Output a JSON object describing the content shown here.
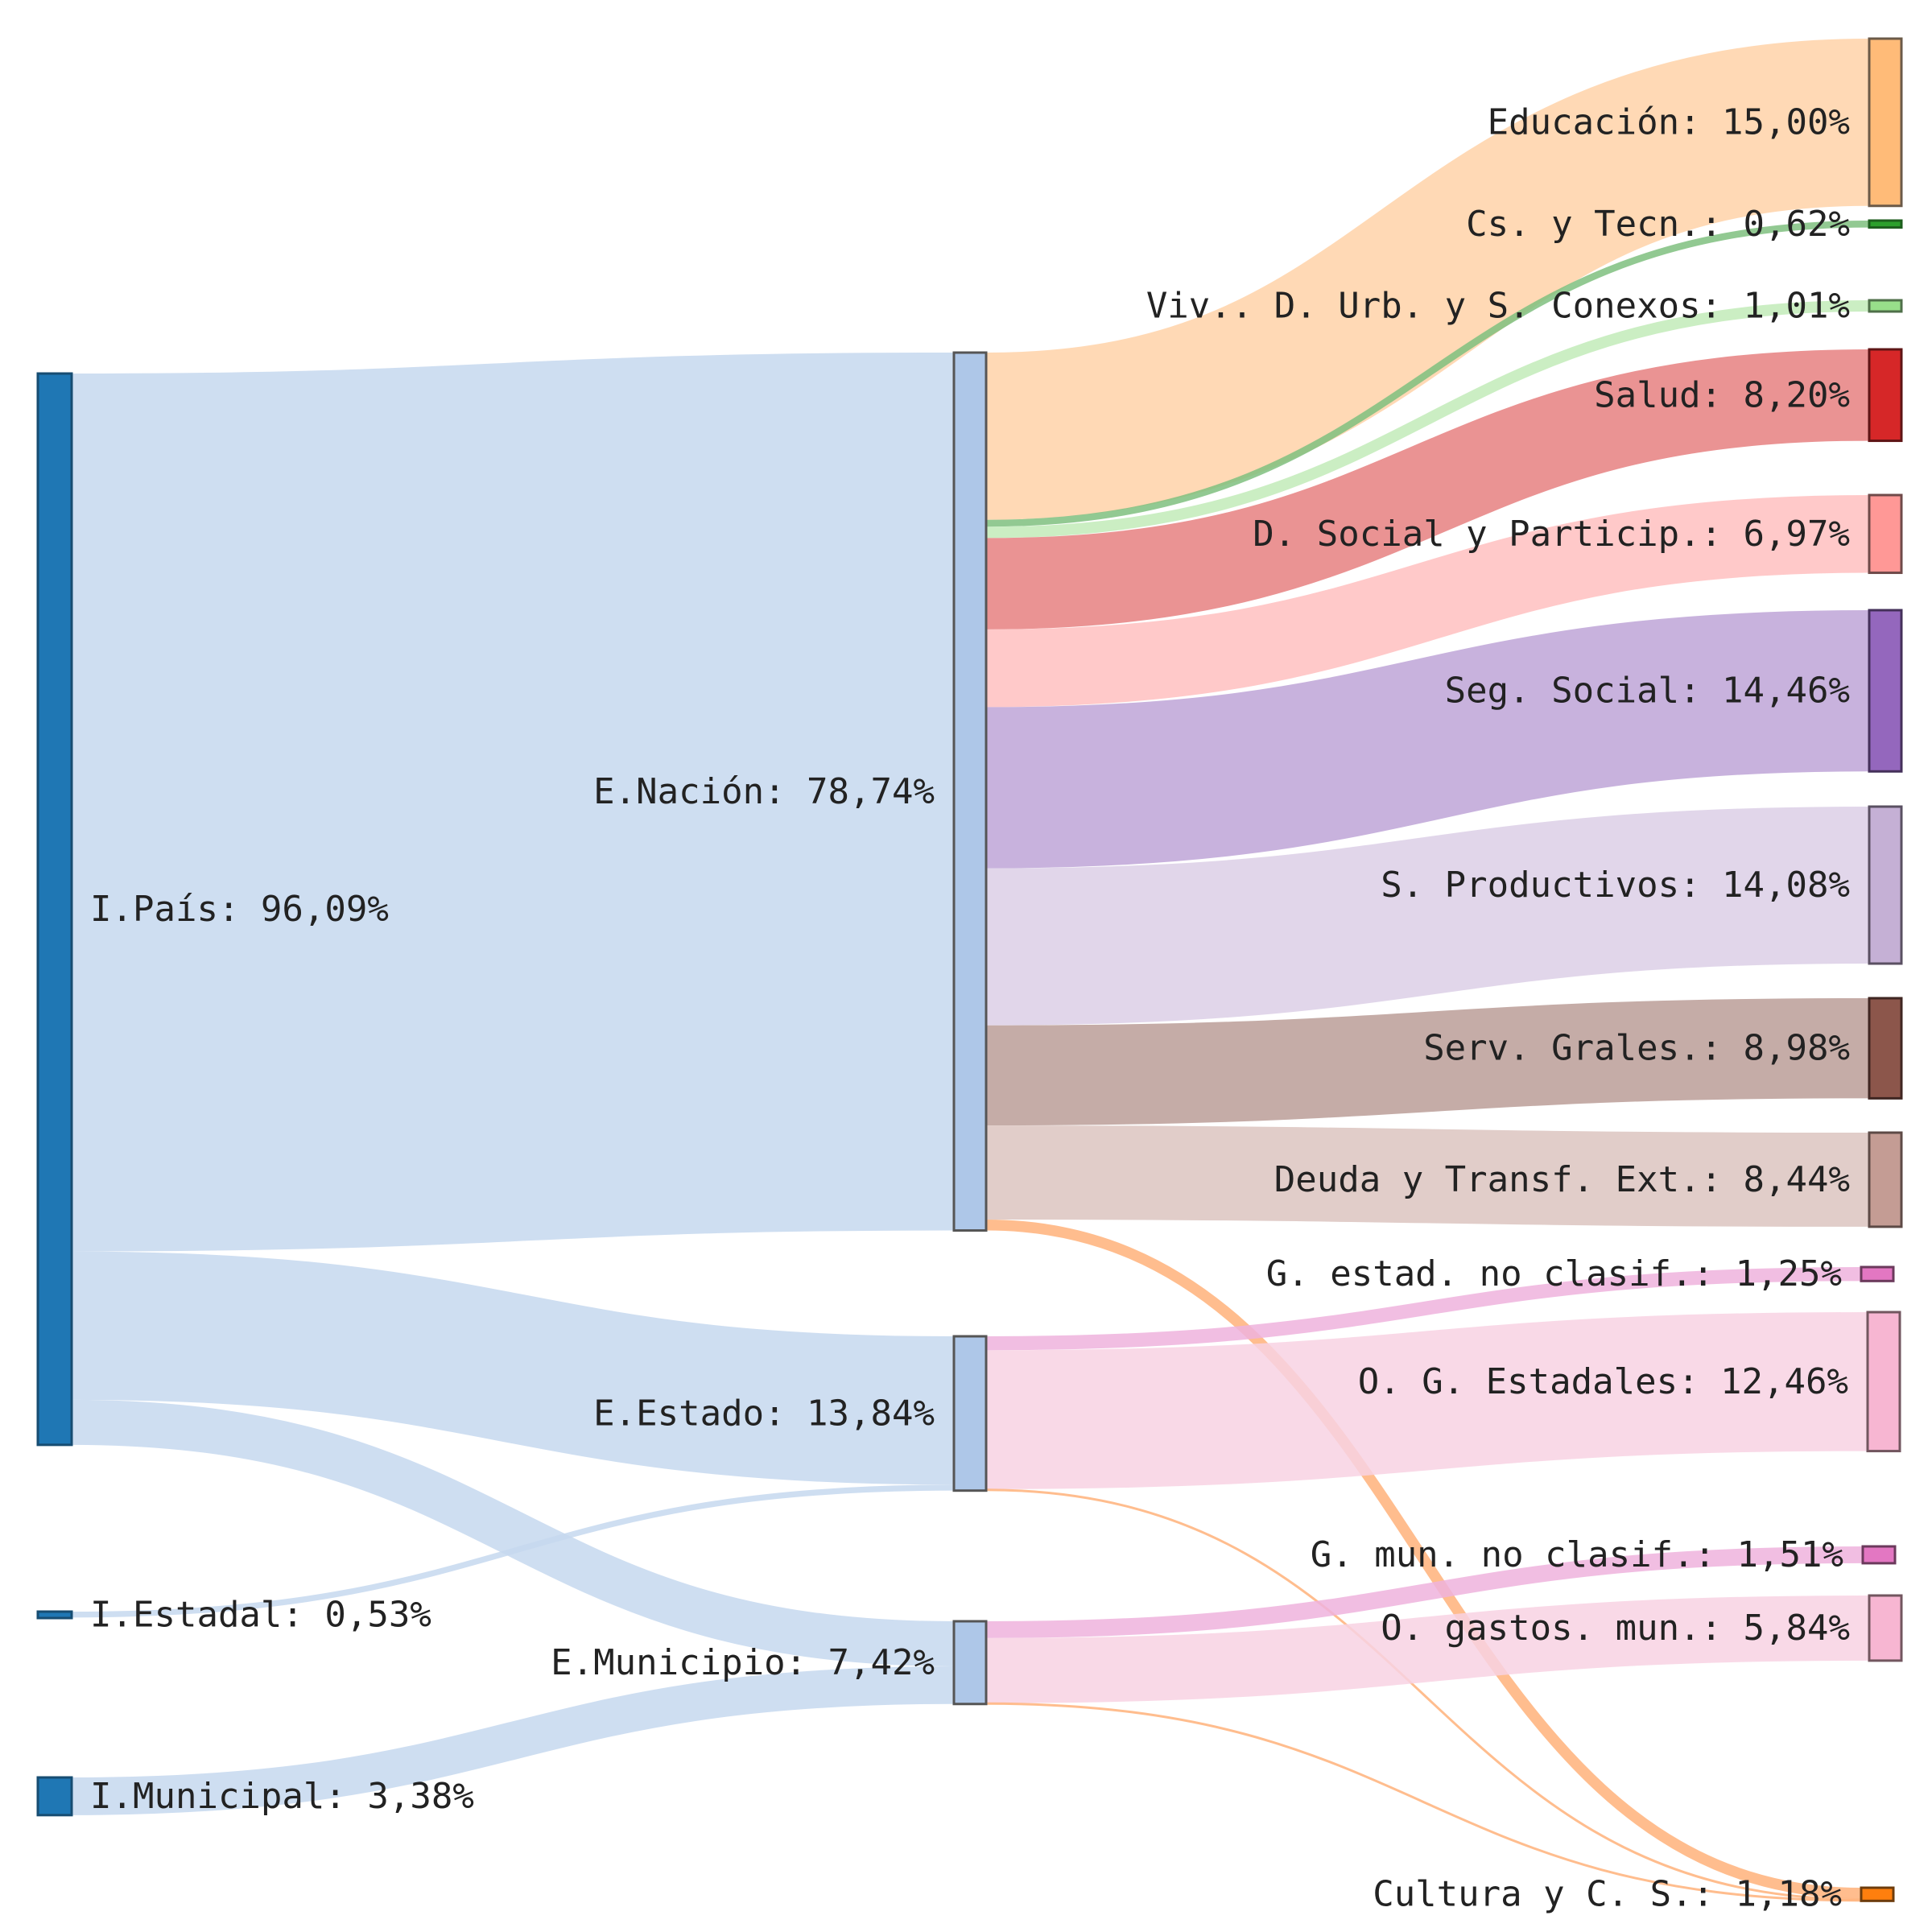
{
  "chart_data": {
    "type": "sankey",
    "title": "",
    "nodes": [
      {
        "id": "ipais",
        "label": "I.País: 96,09%",
        "value": 96.09,
        "color": "#1f77b4",
        "stroke": "#174d72"
      },
      {
        "id": "iestadal",
        "label": "I.Estadal: 0,53%",
        "value": 0.53,
        "color": "#1f77b4",
        "stroke": "#174d72"
      },
      {
        "id": "imunicipal",
        "label": "I.Municipal: 3,38%",
        "value": 3.38,
        "color": "#1f77b4",
        "stroke": "#174d72"
      },
      {
        "id": "enacion",
        "label": "E.Nación: 78,74%",
        "value": 78.74,
        "color": "#aec7e8",
        "stroke": "#555555"
      },
      {
        "id": "eestado",
        "label": "E.Estado: 13,84%",
        "value": 13.84,
        "color": "#aec7e8",
        "stroke": "#555555"
      },
      {
        "id": "emunicipio",
        "label": "E.Municipio: 7,42%",
        "value": 7.42,
        "color": "#aec7e8",
        "stroke": "#555555"
      },
      {
        "id": "educacion",
        "label": "Educación: 15,00%",
        "value": 15.0,
        "color": "#ffbb78",
        "stroke": "#6b5a48"
      },
      {
        "id": "cstec",
        "label": "Cs. y Tecn.: 0,62%",
        "value": 0.62,
        "color": "#2ca02c",
        "stroke": "#1d5e1d"
      },
      {
        "id": "vivienda",
        "label": "Viv.. D. Urb. y S. Conexos: 1,01%",
        "value": 1.01,
        "color": "#98df8a",
        "stroke": "#4f6f49"
      },
      {
        "id": "salud",
        "label": "Salud: 8,20%",
        "value": 8.2,
        "color": "#d62728",
        "stroke": "#5e1415"
      },
      {
        "id": "dsocial",
        "label": "D. Social y Particip.: 6,97%",
        "value": 6.97,
        "color": "#ff9896",
        "stroke": "#6f4a49"
      },
      {
        "id": "segsocial",
        "label": "Seg. Social: 14,46%",
        "value": 14.46,
        "color": "#9467bd",
        "stroke": "#44305a"
      },
      {
        "id": "sprod",
        "label": "S. Productivos: 14,08%",
        "value": 14.08,
        "color": "#c5b0d5",
        "stroke": "#5a5062"
      },
      {
        "id": "servgrales",
        "label": "Serv. Grales.: 8,98%",
        "value": 8.98,
        "color": "#8c564b",
        "stroke": "#3f2622"
      },
      {
        "id": "deuda",
        "label": "Deuda y Transf. Ext.: 8,44%",
        "value": 8.44,
        "color": "#c49c94",
        "stroke": "#5d4a46"
      },
      {
        "id": "gestad",
        "label": "G. estad. no clasif.: 1,25%",
        "value": 1.25,
        "color": "#e377c2",
        "stroke": "#6b3a5c"
      },
      {
        "id": "ogestad",
        "label": "O. G. Estadales: 12,46%",
        "value": 12.46,
        "color": "#f7b6d2",
        "stroke": "#72565f"
      },
      {
        "id": "gmun",
        "label": "G. mun. no clasif.: 1,51%",
        "value": 1.51,
        "color": "#e377c2",
        "stroke": "#6b3a5c"
      },
      {
        "id": "ogmun",
        "label": "O. gastos. mun.: 5,84%",
        "value": 5.84,
        "color": "#f7b6d2",
        "stroke": "#72565f"
      },
      {
        "id": "cultura",
        "label": "Cultura y C. S.: 1,18%",
        "value": 1.18,
        "color": "#ff7f0e",
        "stroke": "#6e3c0c"
      }
    ],
    "links": [
      {
        "source": "ipais",
        "target": "enacion",
        "value": 78.74,
        "color": "#c6d8ee"
      },
      {
        "source": "ipais",
        "target": "eestado",
        "value": 13.31,
        "color": "#c6d8ee"
      },
      {
        "source": "ipais",
        "target": "emunicipio",
        "value": 4.04,
        "color": "#c6d8ee"
      },
      {
        "source": "iestadal",
        "target": "eestado",
        "value": 0.53,
        "color": "#c6d8ee"
      },
      {
        "source": "imunicipal",
        "target": "emunicipio",
        "value": 3.38,
        "color": "#c6d8ee"
      },
      {
        "source": "enacion",
        "target": "educacion",
        "value": 15.0,
        "color": "#ffd2a8"
      },
      {
        "source": "enacion",
        "target": "cstec",
        "value": 0.62,
        "color": "#7fc07f"
      },
      {
        "source": "enacion",
        "target": "vivienda",
        "value": 1.01,
        "color": "#c2ebb9"
      },
      {
        "source": "enacion",
        "target": "salud",
        "value": 8.2,
        "color": "#e68080"
      },
      {
        "source": "enacion",
        "target": "dsocial",
        "value": 6.97,
        "color": "#ffc0bf"
      },
      {
        "source": "enacion",
        "target": "segsocial",
        "value": 14.46,
        "color": "#bea5d7"
      },
      {
        "source": "enacion",
        "target": "sprod",
        "value": 14.08,
        "color": "#dccfe6"
      },
      {
        "source": "enacion",
        "target": "servgrales",
        "value": 8.98,
        "color": "#bb9e98"
      },
      {
        "source": "enacion",
        "target": "deuda",
        "value": 8.44,
        "color": "#dcc4bf"
      },
      {
        "source": "enacion",
        "target": "cultura",
        "value": 0.98,
        "color": "#ffb27a"
      },
      {
        "source": "eestado",
        "target": "gestad",
        "value": 1.25,
        "color": "#efb3dd"
      },
      {
        "source": "eestado",
        "target": "ogestad",
        "value": 12.46,
        "color": "#f8d2e3"
      },
      {
        "source": "eestado",
        "target": "cultura",
        "value": 0.13,
        "color": "#ffb27a"
      },
      {
        "source": "emunicipio",
        "target": "gmun",
        "value": 1.51,
        "color": "#efb3dd"
      },
      {
        "source": "emunicipio",
        "target": "ogmun",
        "value": 5.84,
        "color": "#f8d2e3"
      },
      {
        "source": "emunicipio",
        "target": "cultura",
        "value": 0.07,
        "color": "#ffb27a"
      }
    ]
  }
}
